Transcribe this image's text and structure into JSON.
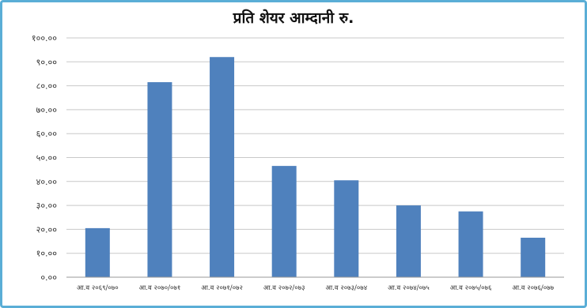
{
  "chart_data": {
    "type": "bar",
    "title": "प्रति शेयर आम्दानी रु.",
    "xlabel": "",
    "ylabel": "",
    "categories": [
      "आ.व २०६९/०७०",
      "आ.व २०७०/०७१",
      "आ.व २०७१/०७२",
      "आ.व २०७२/०७३",
      "आ.व २०७३/०७४",
      "आ.व २०७४/०७५",
      "आ.व २०७५/०७६",
      "आ.व २०७६/०७७"
    ],
    "values": [
      20.5,
      81.5,
      92,
      46.5,
      40.5,
      30,
      27.5,
      16.5
    ],
    "ylim": [
      0,
      100
    ],
    "yticks": [
      0,
      10,
      20,
      30,
      40,
      50,
      60,
      70,
      80,
      90,
      100
    ],
    "ytick_labels": [
      "०.००",
      "१०.००",
      "२०.००",
      "३०.००",
      "४०.००",
      "५०.००",
      "६०.००",
      "७०.००",
      "८०.००",
      "९०.००",
      "१००.००"
    ],
    "grid": true,
    "legend": "none",
    "bar_color": "#4f81bd"
  }
}
